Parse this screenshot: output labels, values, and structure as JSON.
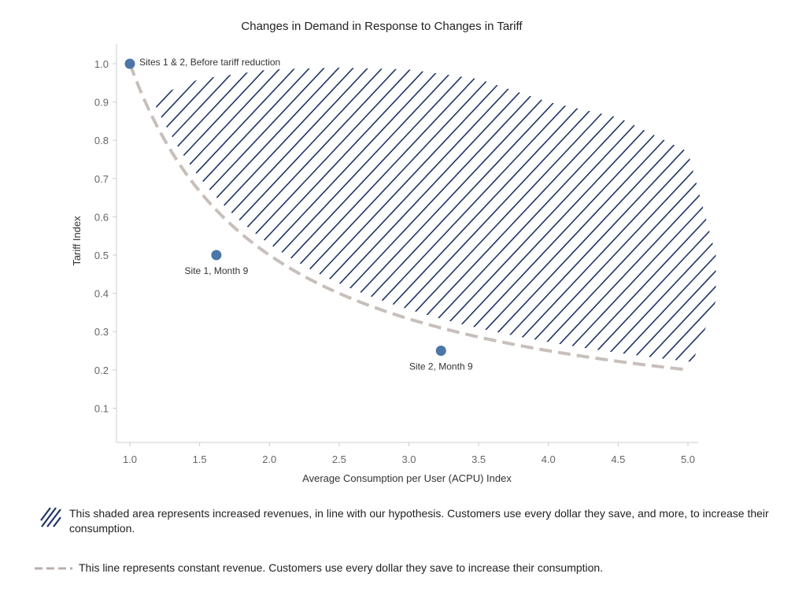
{
  "chart_data": {
    "type": "scatter",
    "title": "Changes in Demand in Response to Changes in Tariff",
    "xlabel": "Average Consumption per User (ACPU) Index",
    "ylabel": "Tariff Index",
    "xlim": [
      0.9,
      5.05
    ],
    "ylim": [
      0.0,
      1.08
    ],
    "x_ticks": [
      "1.0",
      "1.5",
      "2.0",
      "2.5",
      "3.0",
      "3.5",
      "4.0",
      "4.5",
      "5.0"
    ],
    "y_ticks": [
      "0.1",
      "0.2",
      "0.3",
      "0.4",
      "0.5",
      "0.6",
      "0.7",
      "0.8",
      "0.9",
      "1.0"
    ],
    "grid": false,
    "points": [
      {
        "x": 1.0,
        "y": 1.0,
        "label": "Sites 1 & 2, Before tariff reduction"
      },
      {
        "x": 1.62,
        "y": 0.5,
        "label": "Site 1, Month 9"
      },
      {
        "x": 3.23,
        "y": 0.25,
        "label": "Site 2, Month 9"
      }
    ],
    "constant_revenue_curve": {
      "function": "y = 1/x",
      "x_range": [
        1.0,
        5.0
      ]
    },
    "shaded_region_upper": [
      {
        "x": 1.15,
        "y": 0.91
      },
      {
        "x": 1.5,
        "y": 0.96
      },
      {
        "x": 2.0,
        "y": 0.985
      },
      {
        "x": 2.5,
        "y": 0.99
      },
      {
        "x": 3.0,
        "y": 0.985
      },
      {
        "x": 3.5,
        "y": 0.96
      },
      {
        "x": 4.0,
        "y": 0.9
      },
      {
        "x": 4.5,
        "y": 0.86
      },
      {
        "x": 5.0,
        "y": 0.77
      },
      {
        "x": 5.2,
        "y": 0.5
      },
      {
        "x": 5.2,
        "y": 0.38
      }
    ],
    "colors": {
      "points": "#4a76a8",
      "curve": "#c8bfbb",
      "hatch": "#1f3566",
      "axis": "#cccccc",
      "tick_text": "#666666"
    }
  },
  "legend": {
    "hatch_text": "This shaded area represents increased revenues, in line with our hypothesis. Customers use every dollar they save, and more, to increase their consumption.",
    "dash_text": "This line represents constant revenue. Customers use every dollar they save to increase their consumption."
  }
}
